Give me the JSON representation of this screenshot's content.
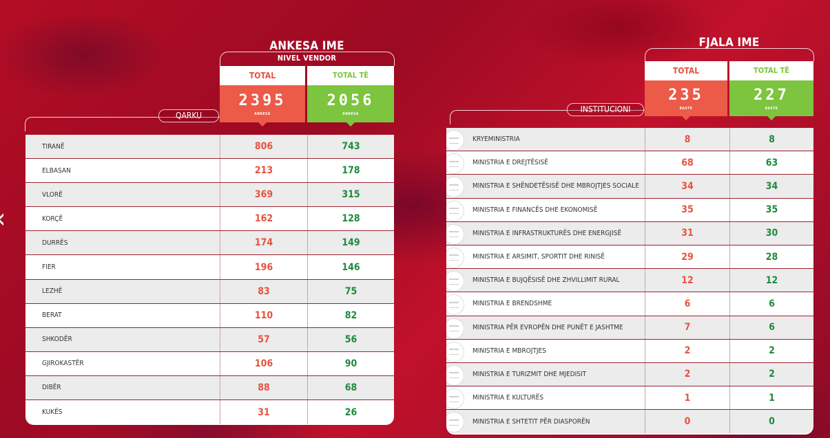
{
  "left": {
    "title": "ANKESA IME",
    "subtitle": "NIVEL VENDOR",
    "row_header": "QARKU",
    "total_label": "TOTAL",
    "completed_label": "TOTAL TË PËRFUNDUARA",
    "total_value": "2395",
    "completed_value": "2056",
    "total_sub": "ANKESA",
    "completed_sub": "ANKESA",
    "rows": [
      {
        "name": "TIRANË",
        "total": "806",
        "done": "743"
      },
      {
        "name": "ELBASAN",
        "total": "213",
        "done": "178"
      },
      {
        "name": "VLORË",
        "total": "369",
        "done": "315"
      },
      {
        "name": "KORÇË",
        "total": "162",
        "done": "128"
      },
      {
        "name": "DURRËS",
        "total": "174",
        "done": "149"
      },
      {
        "name": "FIER",
        "total": "196",
        "done": "146"
      },
      {
        "name": "LEZHË",
        "total": "83",
        "done": "75"
      },
      {
        "name": "BERAT",
        "total": "110",
        "done": "82"
      },
      {
        "name": "SHKODËR",
        "total": "57",
        "done": "56"
      },
      {
        "name": "GJIROKASTËR",
        "total": "106",
        "done": "90"
      },
      {
        "name": "DIBËR",
        "total": "88",
        "done": "68"
      },
      {
        "name": "KUKËS",
        "total": "31",
        "done": "26"
      }
    ]
  },
  "right": {
    "title": "FJALA IME",
    "row_header": "INSTITUCIONI",
    "total_label": "TOTAL",
    "completed_label": "TOTAL TË PËRFUNDUARA",
    "total_value": "235",
    "completed_value": "227",
    "total_sub": "RASTE",
    "completed_sub": "RASTE",
    "rows": [
      {
        "name": "KRYEMINISTRIA",
        "total": "8",
        "done": "8"
      },
      {
        "name": "MINISTRIA E DREJTËSISË",
        "total": "68",
        "done": "63"
      },
      {
        "name": "MINISTRIA E SHËNDETËSISË  DHE MBROJTJES SOCIALE",
        "total": "34",
        "done": "34"
      },
      {
        "name": "MINISTRIA E FINANCËS DHE EKONOMISË",
        "total": "35",
        "done": "35"
      },
      {
        "name": "MINISTRIA E INFRASTRUKTURËS DHE ENERGJISË",
        "total": "31",
        "done": "30"
      },
      {
        "name": "MINISTRIA E ARSIMIT, SPORTIT DHE RINISË",
        "total": "29",
        "done": "28"
      },
      {
        "name": "MINISTRIA E BUJQËSISË  DHE ZHVILLIMIT RURAL",
        "total": "12",
        "done": "12"
      },
      {
        "name": "MINISTRIA E BRENDSHME",
        "total": "6",
        "done": "6"
      },
      {
        "name": "MINISTRIA PËR EVROPËN DHE PUNËT E  JASHTME",
        "total": "7",
        "done": "6"
      },
      {
        "name": "MINISTRIA E MBROJTJES",
        "total": "2",
        "done": "2"
      },
      {
        "name": "MINISTRIA E TURIZMIT DHE MJEDISIT",
        "total": "2",
        "done": "2"
      },
      {
        "name": "MINISTRIA E KULTURËS",
        "total": "1",
        "done": "1"
      },
      {
        "name": "MINISTRIA E SHTETIT PËR DIASPORËN",
        "total": "0",
        "done": "0"
      }
    ]
  },
  "nav": {
    "prev_icon": "chevron-left-icon"
  },
  "colors": {
    "total": "#ec5a48",
    "completed": "#7dc43f",
    "value_red": "#e8523f",
    "value_green": "#1f8a3a"
  }
}
